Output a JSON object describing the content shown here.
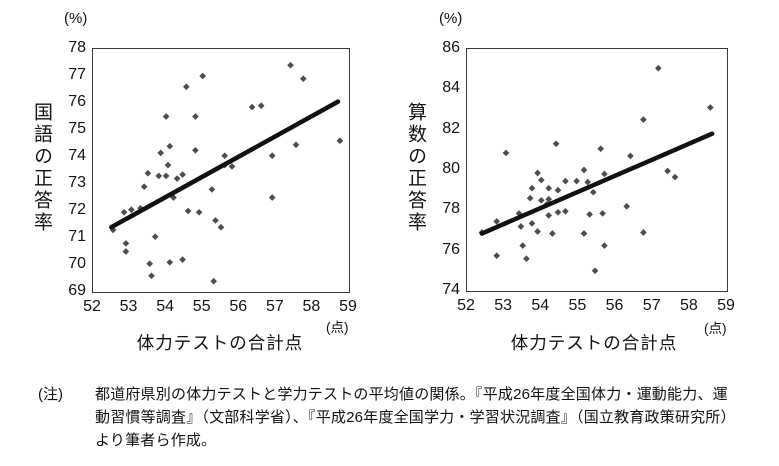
{
  "note": {
    "label": "(注)",
    "lines": [
      "都道府県別の体力テストと学力テストの平均値の関係。『平成26年度全国体力・運動能力、運",
      "動習慣等調査』（文部科学省）、『平成26年度全国学力・学習状況調査』（国立教育政策研究所）",
      "より筆者ら作成。"
    ]
  },
  "chart_data": [
    {
      "type": "scatter",
      "title": "",
      "ylabel": "国語の正答率",
      "xlabel": "体力テストの合計点",
      "y_unit": "(%)",
      "x_unit": "(点)",
      "xlim": [
        52,
        59
      ],
      "ylim": [
        69,
        78
      ],
      "xticks": [
        52,
        53,
        54,
        55,
        56,
        57,
        58,
        59
      ],
      "yticks": [
        69,
        70,
        71,
        72,
        73,
        74,
        75,
        76,
        77,
        78
      ],
      "grid": false,
      "legend": false,
      "point_color": "#4d4d4d",
      "trend_color": "#111111",
      "trend": {
        "x1": 52.5,
        "y1": 71.4,
        "x2": 58.7,
        "y2": 76.05
      },
      "points": [
        [
          52.55,
          71.3
        ],
        [
          52.85,
          71.95
        ],
        [
          53.05,
          72.05
        ],
        [
          53.3,
          72.1
        ],
        [
          53.4,
          72.9
        ],
        [
          53.5,
          73.4
        ],
        [
          53.8,
          73.3
        ],
        [
          54.0,
          73.3
        ],
        [
          54.3,
          73.2
        ],
        [
          54.45,
          73.35
        ],
        [
          54.05,
          73.7
        ],
        [
          53.85,
          74.15
        ],
        [
          54.1,
          74.4
        ],
        [
          54.8,
          74.25
        ],
        [
          55.6,
          73.7
        ],
        [
          55.8,
          73.65
        ],
        [
          55.6,
          74.05
        ],
        [
          56.9,
          74.05
        ],
        [
          54.0,
          75.5
        ],
        [
          54.8,
          75.5
        ],
        [
          54.55,
          76.6
        ],
        [
          55.0,
          77.0
        ],
        [
          57.4,
          77.4
        ],
        [
          57.75,
          76.9
        ],
        [
          56.35,
          75.85
        ],
        [
          56.6,
          75.9
        ],
        [
          58.75,
          74.6
        ],
        [
          57.55,
          74.45
        ],
        [
          55.25,
          72.8
        ],
        [
          56.9,
          72.5
        ],
        [
          54.2,
          72.5
        ],
        [
          54.6,
          72.0
        ],
        [
          54.9,
          71.95
        ],
        [
          55.35,
          71.65
        ],
        [
          55.5,
          71.4
        ],
        [
          53.7,
          71.05
        ],
        [
          52.9,
          70.8
        ],
        [
          52.9,
          70.5
        ],
        [
          53.55,
          70.05
        ],
        [
          54.1,
          70.1
        ],
        [
          54.45,
          70.2
        ],
        [
          53.6,
          69.6
        ],
        [
          55.3,
          69.4
        ]
      ]
    },
    {
      "type": "scatter",
      "title": "",
      "ylabel": "算数の正答率",
      "xlabel": "体力テストの合計点",
      "y_unit": "(%)",
      "x_unit": "(点)",
      "xlim": [
        52,
        59
      ],
      "ylim": [
        74,
        86
      ],
      "xticks": [
        52,
        53,
        54,
        55,
        56,
        57,
        58,
        59
      ],
      "yticks": [
        74,
        76,
        78,
        80,
        82,
        84,
        86
      ],
      "grid": false,
      "legend": false,
      "point_color": "#4d4d4d",
      "trend_color": "#111111",
      "trend": {
        "x1": 52.4,
        "y1": 76.85,
        "x2": 58.6,
        "y2": 81.8
      },
      "points": [
        [
          53.05,
          80.85
        ],
        [
          54.4,
          81.3
        ],
        [
          57.15,
          85.05
        ],
        [
          58.55,
          83.1
        ],
        [
          56.75,
          82.5
        ],
        [
          55.6,
          81.05
        ],
        [
          56.4,
          80.7
        ],
        [
          57.4,
          79.95
        ],
        [
          57.6,
          79.65
        ],
        [
          55.7,
          79.8
        ],
        [
          55.15,
          80.0
        ],
        [
          53.9,
          79.85
        ],
        [
          54.0,
          79.5
        ],
        [
          54.2,
          79.1
        ],
        [
          53.75,
          79.1
        ],
        [
          54.45,
          79.0
        ],
        [
          54.65,
          79.45
        ],
        [
          54.95,
          79.45
        ],
        [
          55.25,
          79.4
        ],
        [
          55.4,
          78.9
        ],
        [
          53.7,
          78.6
        ],
        [
          54.0,
          78.5
        ],
        [
          54.2,
          78.55
        ],
        [
          54.15,
          78.3
        ],
        [
          56.3,
          78.2
        ],
        [
          54.45,
          77.9
        ],
        [
          54.65,
          77.95
        ],
        [
          55.3,
          77.8
        ],
        [
          55.65,
          77.85
        ],
        [
          53.4,
          77.85
        ],
        [
          54.2,
          77.75
        ],
        [
          53.75,
          77.35
        ],
        [
          53.45,
          77.2
        ],
        [
          52.8,
          77.45
        ],
        [
          52.4,
          76.9
        ],
        [
          53.9,
          76.95
        ],
        [
          54.3,
          76.85
        ],
        [
          55.15,
          76.85
        ],
        [
          56.75,
          76.9
        ],
        [
          55.7,
          76.25
        ],
        [
          53.5,
          76.25
        ],
        [
          53.6,
          75.6
        ],
        [
          52.8,
          75.75
        ],
        [
          55.45,
          75.0
        ]
      ]
    }
  ]
}
